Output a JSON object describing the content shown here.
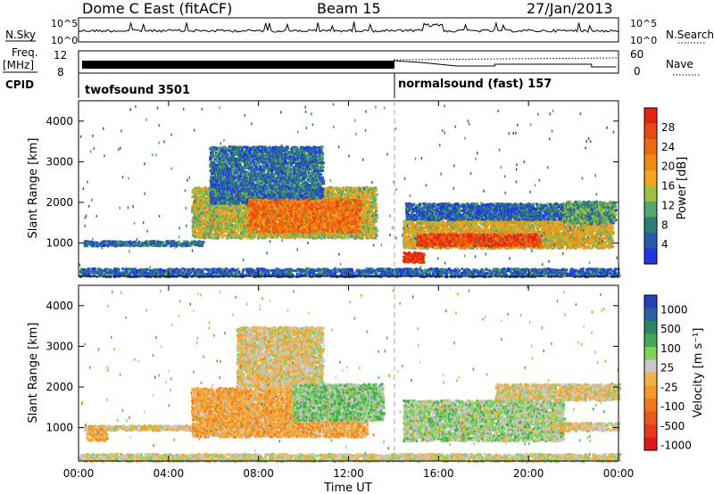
{
  "header": {
    "station": "Dome C East (fitACF)",
    "beam": "Beam 15",
    "date": "27/Jan/2013"
  },
  "top_panels": {
    "nsky_label": "N.Sky",
    "nsky_ticks": [
      "10^5",
      "10^0"
    ],
    "nsearch_label": "N.Search",
    "freq_label": "Freq.",
    "freq_unit": "[MHz]",
    "freq_ticks": [
      "12",
      "8"
    ],
    "nave_label": "Nave",
    "nave_ticks": [
      "60",
      "0"
    ],
    "cpid_label": "CPID",
    "cpid_1": "twofsound 3501",
    "cpid_2": "normalsound (fast) 157"
  },
  "time_axis": {
    "label": "Time UT",
    "ticks": [
      "00:00",
      "04:00",
      "08:00",
      "12:00",
      "16:00",
      "20:00",
      "00:00"
    ]
  },
  "chart_data": [
    {
      "type": "heatmap",
      "title": "",
      "xlabel": "Time UT",
      "ylabel": "Slant Range [km]",
      "x_range_hours": [
        0,
        24
      ],
      "ylim": [
        180,
        4500
      ],
      "y_ticks": [
        1000,
        2000,
        3000,
        4000
      ],
      "colorbar": {
        "label": "Power [dB]",
        "labels": [
          "4",
          "8",
          "12",
          "16",
          "20",
          "24",
          "28"
        ],
        "colors": [
          "#1f38e0",
          "#2859b0",
          "#2e7d78",
          "#56a56a",
          "#9fbe47",
          "#f2a41c",
          "#f08a17",
          "#ee6a12",
          "#ea4a10",
          "#e3250f"
        ]
      },
      "echo_regions": [
        {
          "t0": 0.2,
          "t1": 5.5,
          "r0": 960,
          "r1": 1080,
          "value": 6
        },
        {
          "t0": 5.0,
          "t1": 13.2,
          "r0": 1150,
          "r1": 2400,
          "value": 14
        },
        {
          "t0": 5.8,
          "t1": 10.8,
          "r0": 2000,
          "r1": 3400,
          "value": 6
        },
        {
          "t0": 7.5,
          "t1": 12.5,
          "r0": 1300,
          "r1": 2100,
          "value": 22
        },
        {
          "t0": 14.4,
          "t1": 23.7,
          "r0": 900,
          "r1": 1600,
          "value": 16
        },
        {
          "t0": 15.0,
          "t1": 20.5,
          "r0": 950,
          "r1": 1250,
          "value": 26
        },
        {
          "t0": 14.4,
          "t1": 15.3,
          "r0": 550,
          "r1": 800,
          "value": 29
        },
        {
          "t0": 14.5,
          "t1": 23.8,
          "r0": 1600,
          "r1": 2000,
          "value": 5
        },
        {
          "t0": 21.5,
          "t1": 23.8,
          "r0": 1500,
          "r1": 2050,
          "value": 10
        },
        {
          "t0": 0.0,
          "t1": 24.0,
          "r0": 200,
          "r1": 400,
          "value": 5
        }
      ]
    },
    {
      "type": "heatmap",
      "title": "",
      "xlabel": "Time UT",
      "ylabel": "Slant Range [km]",
      "x_range_hours": [
        0,
        24
      ],
      "ylim": [
        180,
        4500
      ],
      "y_ticks": [
        1000,
        2000,
        3000,
        4000
      ],
      "colorbar": {
        "label": "Velocity [m s⁻¹]",
        "labels": [
          "1000",
          "500",
          "100",
          "25",
          "-25",
          "-100",
          "-500",
          "-1000"
        ],
        "colors": [
          "#2341b8",
          "#2a62a8",
          "#2c8760",
          "#46a85a",
          "#7cd25a",
          "#c8c8c8",
          "#f0b24a",
          "#f39a2a",
          "#f07818",
          "#ea5a1c",
          "#e63a18",
          "#e0181c"
        ]
      },
      "echo_regions": [
        {
          "t0": 0.2,
          "t1": 5.5,
          "r0": 960,
          "r1": 1080,
          "value": 0
        },
        {
          "t0": 0.3,
          "t1": 1.2,
          "r0": 700,
          "r1": 1000,
          "value": -200
        },
        {
          "t0": 5.0,
          "t1": 12.8,
          "r0": 800,
          "r1": 2000,
          "value": -200
        },
        {
          "t0": 7.0,
          "t1": 10.8,
          "r0": 2000,
          "r1": 3500,
          "value": 0
        },
        {
          "t0": 9.5,
          "t1": 13.5,
          "r0": 1200,
          "r1": 2100,
          "value": 300
        },
        {
          "t0": 14.4,
          "t1": 21.5,
          "r0": 700,
          "r1": 1700,
          "value": 200
        },
        {
          "t0": 18.5,
          "t1": 24.0,
          "r0": 1700,
          "r1": 2100,
          "value": 0
        },
        {
          "t0": 21.0,
          "t1": 24.0,
          "r0": 950,
          "r1": 1150,
          "value": 0
        },
        {
          "t0": 0.0,
          "t1": 24.0,
          "r0": 200,
          "r1": 380,
          "value": 60
        }
      ]
    }
  ]
}
